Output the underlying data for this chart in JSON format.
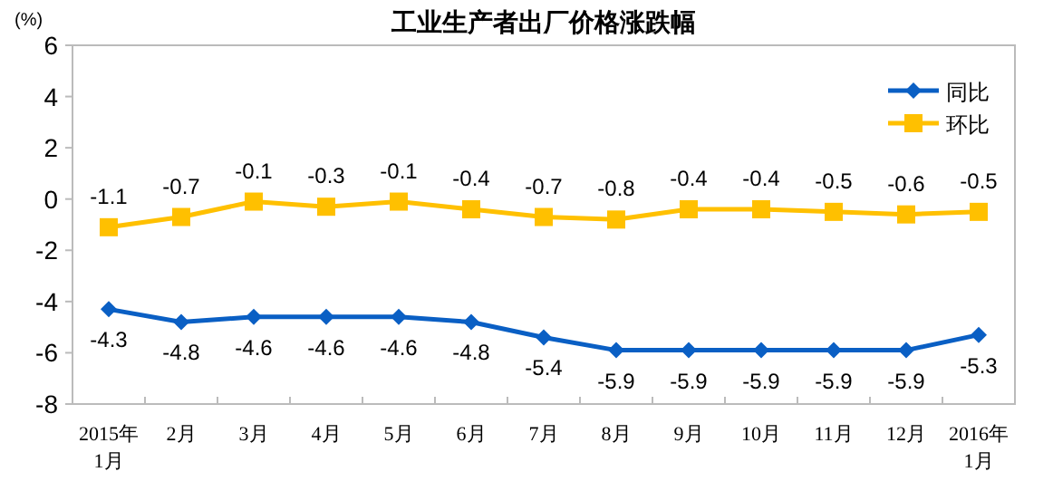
{
  "chart_data": {
    "type": "line",
    "title": "工业生产者出厂价格涨跌幅",
    "ylabel": "(%)",
    "categories": [
      "2015年\n1月",
      "2月",
      "3月",
      "4月",
      "5月",
      "6月",
      "7月",
      "8月",
      "9月",
      "10月",
      "11月",
      "12月",
      "2016年\n1月"
    ],
    "series": [
      {
        "name": "同比",
        "color": "#0a5fc4",
        "marker": "diamond",
        "values": [
          -4.3,
          -4.8,
          -4.6,
          -4.6,
          -4.6,
          -4.8,
          -5.4,
          -5.9,
          -5.9,
          -5.9,
          -5.9,
          -5.9,
          -5.3
        ]
      },
      {
        "name": "环比",
        "color": "#ffc000",
        "marker": "square",
        "values": [
          -1.1,
          -0.7,
          -0.1,
          -0.3,
          -0.1,
          -0.4,
          -0.7,
          -0.8,
          -0.4,
          -0.4,
          -0.5,
          -0.6,
          -0.5
        ]
      }
    ],
    "ylim": [
      -8,
      6
    ],
    "yticks": [
      -8,
      -6,
      -4,
      -2,
      0,
      2,
      4,
      6
    ],
    "grid": false,
    "legend": "top right",
    "data_labels": true
  }
}
